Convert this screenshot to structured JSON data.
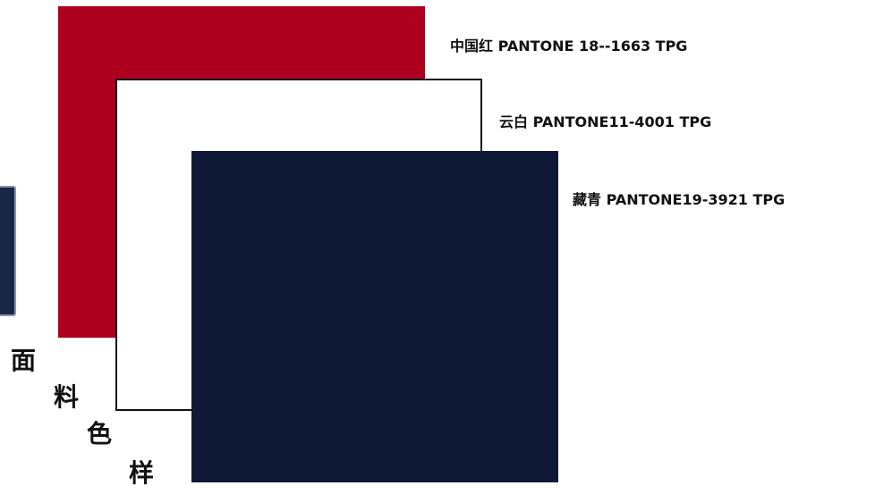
{
  "swatches": [
    {
      "label": "中国红 PANTONE 18--1663 TPG",
      "color": "#ac001e"
    },
    {
      "label": "云白 PANTONE11-4001 TPG",
      "color": "#ffffff"
    },
    {
      "label": "藏青 PANTONE19-3921 TPG",
      "color": "#0e1935"
    }
  ],
  "caption": [
    "面",
    "料",
    "色",
    "样"
  ]
}
